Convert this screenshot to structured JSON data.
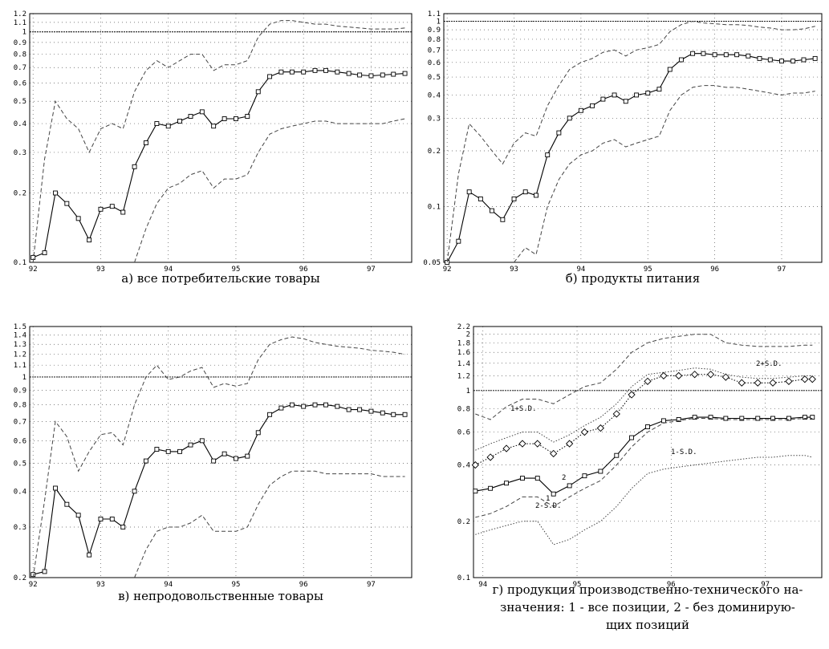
{
  "chart_data": [
    {
      "type": "line",
      "log_y": true,
      "grid": true,
      "reference_line": 1,
      "caption": [
        "а) все потребительские товары"
      ],
      "xlim": [
        91.95,
        97.6
      ],
      "xticks": [
        92,
        93,
        94,
        95,
        96,
        97
      ],
      "ylim": [
        0.1,
        1.2
      ],
      "yticks": [
        0.1,
        0.2,
        0.3,
        0.4,
        0.5,
        0.6,
        0.7,
        0.8,
        0.9,
        1,
        1.1,
        1.2
      ],
      "x": [
        92,
        92.17,
        92.33,
        92.5,
        92.67,
        92.83,
        93,
        93.17,
        93.33,
        93.5,
        93.67,
        93.83,
        94,
        94.17,
        94.33,
        94.5,
        94.67,
        94.83,
        95,
        95.17,
        95.33,
        95.5,
        95.67,
        95.83,
        96,
        96.17,
        96.33,
        96.5,
        96.67,
        96.83,
        97,
        97.17,
        97.33,
        97.5
      ],
      "series": [
        {
          "color": "#000000",
          "style": "solid",
          "marker": "square",
          "values": [
            0.105,
            0.11,
            0.2,
            0.18,
            0.155,
            0.125,
            0.17,
            0.175,
            0.165,
            0.26,
            0.33,
            0.4,
            0.39,
            0.41,
            0.43,
            0.45,
            0.39,
            0.42,
            0.42,
            0.43,
            0.55,
            0.64,
            0.67,
            0.67,
            0.67,
            0.68,
            0.68,
            0.67,
            0.66,
            0.65,
            0.645,
            0.65,
            0.655,
            0.66
          ]
        },
        {
          "color": "#444444",
          "style": "dashed",
          "values": [
            0.1,
            0.28,
            0.5,
            0.42,
            0.38,
            0.3,
            0.38,
            0.4,
            0.38,
            0.55,
            0.68,
            0.75,
            0.7,
            0.75,
            0.8,
            0.8,
            0.68,
            0.72,
            0.72,
            0.75,
            0.95,
            1.08,
            1.12,
            1.12,
            1.1,
            1.08,
            1.08,
            1.06,
            1.05,
            1.04,
            1.03,
            1.03,
            1.03,
            1.04
          ]
        },
        {
          "color": "#444444",
          "style": "dashed",
          "values": [
            null,
            null,
            null,
            null,
            null,
            null,
            null,
            null,
            null,
            0.1,
            0.14,
            0.18,
            0.21,
            0.22,
            0.24,
            0.25,
            0.21,
            0.23,
            0.23,
            0.24,
            0.3,
            0.36,
            0.38,
            0.39,
            0.4,
            0.41,
            0.41,
            0.4,
            0.4,
            0.4,
            0.4,
            0.4,
            0.41,
            0.42
          ]
        }
      ]
    },
    {
      "type": "line",
      "log_y": true,
      "grid": true,
      "reference_line": 1,
      "caption": [
        "б) продукты питания"
      ],
      "xlim": [
        91.95,
        97.6
      ],
      "xticks": [
        92,
        93,
        94,
        95,
        96,
        97
      ],
      "ylim": [
        0.05,
        1.1
      ],
      "yticks": [
        0.05,
        0.1,
        0.2,
        0.3,
        0.4,
        0.5,
        0.6,
        0.7,
        0.8,
        0.9,
        1,
        1.1
      ],
      "x": [
        92,
        92.17,
        92.33,
        92.5,
        92.67,
        92.83,
        93,
        93.17,
        93.33,
        93.5,
        93.67,
        93.83,
        94,
        94.17,
        94.33,
        94.5,
        94.67,
        94.83,
        95,
        95.17,
        95.33,
        95.5,
        95.67,
        95.83,
        96,
        96.17,
        96.33,
        96.5,
        96.67,
        96.83,
        97,
        97.17,
        97.33,
        97.5
      ],
      "series": [
        {
          "color": "#000000",
          "style": "solid",
          "marker": "square",
          "values": [
            0.05,
            0.065,
            0.12,
            0.11,
            0.095,
            0.085,
            0.11,
            0.12,
            0.115,
            0.19,
            0.25,
            0.3,
            0.33,
            0.35,
            0.38,
            0.4,
            0.37,
            0.4,
            0.41,
            0.43,
            0.55,
            0.62,
            0.67,
            0.67,
            0.66,
            0.66,
            0.66,
            0.65,
            0.63,
            0.62,
            0.61,
            0.61,
            0.62,
            0.63
          ]
        },
        {
          "color": "#444444",
          "style": "dashed",
          "values": [
            0.05,
            0.15,
            0.28,
            0.24,
            0.2,
            0.17,
            0.22,
            0.25,
            0.24,
            0.35,
            0.45,
            0.55,
            0.6,
            0.63,
            0.68,
            0.7,
            0.65,
            0.7,
            0.72,
            0.75,
            0.88,
            0.96,
            1.0,
            0.98,
            0.97,
            0.96,
            0.96,
            0.95,
            0.93,
            0.92,
            0.9,
            0.9,
            0.91,
            0.94
          ]
        },
        {
          "color": "#444444",
          "style": "dashed",
          "values": [
            null,
            null,
            null,
            null,
            null,
            null,
            0.05,
            0.06,
            0.055,
            0.1,
            0.14,
            0.17,
            0.19,
            0.2,
            0.22,
            0.23,
            0.21,
            0.22,
            0.23,
            0.24,
            0.33,
            0.4,
            0.44,
            0.45,
            0.45,
            0.44,
            0.44,
            0.43,
            0.42,
            0.41,
            0.4,
            0.41,
            0.41,
            0.42
          ]
        }
      ]
    },
    {
      "type": "line",
      "log_y": true,
      "grid": true,
      "reference_line": 1,
      "caption": [
        "в) непродовольственные товары"
      ],
      "xlim": [
        91.95,
        97.6
      ],
      "xticks": [
        92,
        93,
        94,
        95,
        96,
        97
      ],
      "ylim": [
        0.2,
        1.5
      ],
      "yticks": [
        0.2,
        0.3,
        0.4,
        0.5,
        0.6,
        0.7,
        0.8,
        0.9,
        1,
        1.1,
        1.2,
        1.3,
        1.4,
        1.5
      ],
      "x": [
        92,
        92.17,
        92.33,
        92.5,
        92.67,
        92.83,
        93,
        93.17,
        93.33,
        93.5,
        93.67,
        93.83,
        94,
        94.17,
        94.33,
        94.5,
        94.67,
        94.83,
        95,
        95.17,
        95.33,
        95.5,
        95.67,
        95.83,
        96,
        96.17,
        96.33,
        96.5,
        96.67,
        96.83,
        97,
        97.17,
        97.33,
        97.5
      ],
      "series": [
        {
          "color": "#000000",
          "style": "solid",
          "marker": "square",
          "values": [
            0.205,
            0.21,
            0.41,
            0.36,
            0.33,
            0.24,
            0.32,
            0.32,
            0.3,
            0.4,
            0.51,
            0.56,
            0.55,
            0.55,
            0.58,
            0.6,
            0.51,
            0.54,
            0.52,
            0.53,
            0.64,
            0.74,
            0.78,
            0.8,
            0.79,
            0.8,
            0.8,
            0.79,
            0.77,
            0.77,
            0.76,
            0.75,
            0.74,
            0.74
          ]
        },
        {
          "color": "#444444",
          "style": "dashed",
          "values": [
            0.2,
            0.37,
            0.7,
            0.62,
            0.47,
            0.55,
            0.63,
            0.64,
            0.58,
            0.8,
            1.0,
            1.1,
            0.98,
            1.0,
            1.05,
            1.08,
            0.92,
            0.95,
            0.93,
            0.95,
            1.15,
            1.3,
            1.35,
            1.38,
            1.36,
            1.32,
            1.3,
            1.28,
            1.27,
            1.26,
            1.24,
            1.23,
            1.22,
            1.2
          ]
        },
        {
          "color": "#444444",
          "style": "dashed",
          "values": [
            null,
            null,
            null,
            null,
            null,
            null,
            null,
            null,
            null,
            0.2,
            0.25,
            0.29,
            0.3,
            0.3,
            0.31,
            0.33,
            0.29,
            0.29,
            0.29,
            0.3,
            0.36,
            0.42,
            0.45,
            0.47,
            0.47,
            0.47,
            0.46,
            0.46,
            0.46,
            0.46,
            0.46,
            0.45,
            0.45,
            0.45
          ]
        }
      ]
    },
    {
      "type": "line",
      "log_y": true,
      "grid": true,
      "reference_line": 1,
      "caption": [
        "г) продукция производственно-технического на-",
        "значения: 1 - все позиции, 2 - без доминирую-",
        "щих позиций"
      ],
      "xlim": [
        93.9,
        97.6
      ],
      "xticks": [
        94,
        95,
        96,
        97
      ],
      "ylim": [
        0.1,
        2.2
      ],
      "yticks": [
        0.1,
        0.2,
        0.4,
        0.6,
        0.8,
        1,
        1.2,
        1.4,
        1.6,
        1.8,
        2,
        2.2
      ],
      "x": [
        93.92,
        94.08,
        94.25,
        94.42,
        94.58,
        94.75,
        94.92,
        95.08,
        95.25,
        95.42,
        95.58,
        95.75,
        95.92,
        96.08,
        96.25,
        96.42,
        96.58,
        96.75,
        96.92,
        97.08,
        97.25,
        97.42,
        97.5
      ],
      "series": [
        {
          "name": "1",
          "color": "#000000",
          "style": "solid",
          "marker": "square",
          "values": [
            0.29,
            0.3,
            0.32,
            0.34,
            0.34,
            0.28,
            0.31,
            0.35,
            0.37,
            0.45,
            0.56,
            0.64,
            0.69,
            0.7,
            0.72,
            0.72,
            0.71,
            0.71,
            0.71,
            0.71,
            0.71,
            0.72,
            0.72
          ]
        },
        {
          "name": "2",
          "color": "#000000",
          "style": "dotted",
          "marker": "diamond",
          "values": [
            0.4,
            0.44,
            0.49,
            0.52,
            0.52,
            0.46,
            0.52,
            0.6,
            0.63,
            0.75,
            0.95,
            1.12,
            1.2,
            1.2,
            1.22,
            1.22,
            1.18,
            1.1,
            1.1,
            1.1,
            1.12,
            1.15,
            1.15
          ]
        },
        {
          "name": "2+S.D.",
          "color": "#444444",
          "style": "dashed",
          "values": [
            0.75,
            0.7,
            0.82,
            0.9,
            0.9,
            0.85,
            0.95,
            1.05,
            1.1,
            1.3,
            1.6,
            1.8,
            1.9,
            1.95,
            2.0,
            2.0,
            1.8,
            1.75,
            1.72,
            1.72,
            1.72,
            1.75,
            1.75
          ]
        },
        {
          "name": "1+S.D.",
          "color": "#444444",
          "style": "dotted",
          "values": [
            0.48,
            0.52,
            0.56,
            0.6,
            0.6,
            0.53,
            0.58,
            0.65,
            0.72,
            0.85,
            1.05,
            1.22,
            1.25,
            1.28,
            1.32,
            1.3,
            1.22,
            1.18,
            1.16,
            1.16,
            1.18,
            1.2,
            1.2
          ]
        },
        {
          "name": "2-S.D.",
          "color": "#444444",
          "style": "dashed",
          "values": [
            0.21,
            0.22,
            0.24,
            0.27,
            0.27,
            0.24,
            0.27,
            0.3,
            0.33,
            0.4,
            0.5,
            0.6,
            0.67,
            0.69,
            0.71,
            0.71,
            0.7,
            0.7,
            0.7,
            0.7,
            0.7,
            0.71,
            0.71
          ]
        },
        {
          "name": "1-S.D.",
          "color": "#444444",
          "style": "dotted",
          "values": [
            0.17,
            0.18,
            0.19,
            0.2,
            0.2,
            0.15,
            0.16,
            0.18,
            0.2,
            0.24,
            0.3,
            0.36,
            0.38,
            0.39,
            0.4,
            0.41,
            0.42,
            0.43,
            0.44,
            0.44,
            0.45,
            0.45,
            0.44
          ]
        }
      ]
    }
  ]
}
